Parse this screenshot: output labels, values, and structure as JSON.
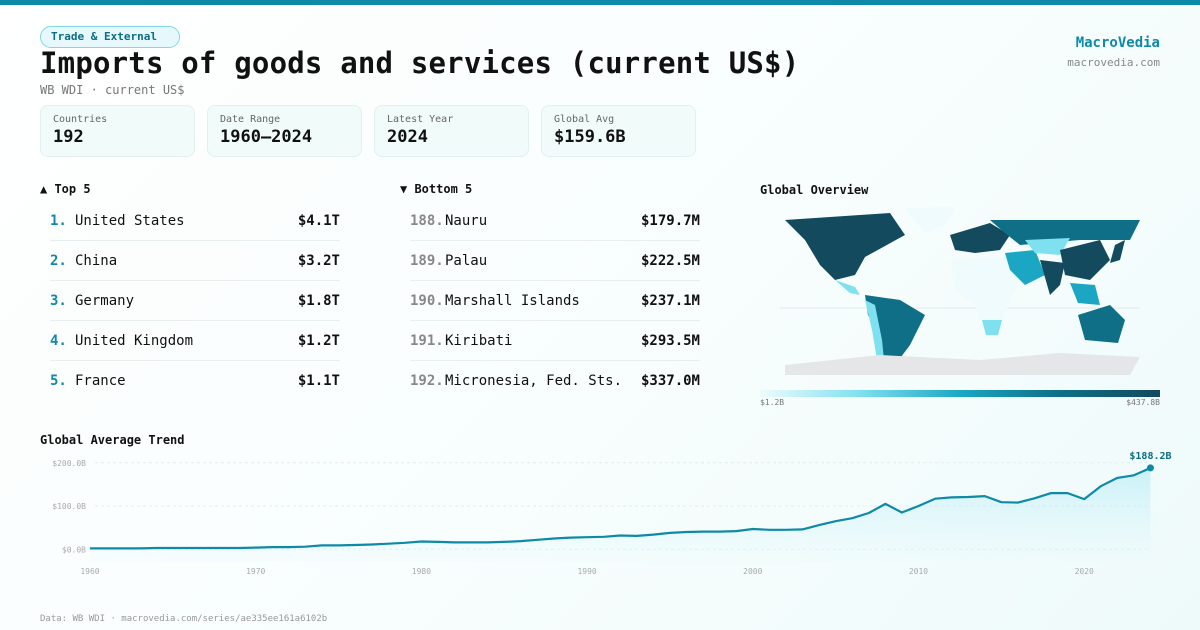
{
  "category_badge": "Trade & External",
  "title": "Imports of goods and services (current US$)",
  "subtitle": "WB WDI · current US$",
  "brand": {
    "name": "MacroVedia",
    "url": "macrovedia.com"
  },
  "stats": [
    {
      "label": "Countries",
      "value": "192"
    },
    {
      "label": "Date Range",
      "value": "1960–2024"
    },
    {
      "label": "Latest Year",
      "value": "2024"
    },
    {
      "label": "Global Avg",
      "value": "$159.6B"
    }
  ],
  "top5": {
    "heading": "▲ Top 5",
    "items": [
      {
        "rank": "1.",
        "name": "United States",
        "value": "$4.1T"
      },
      {
        "rank": "2.",
        "name": "China",
        "value": "$3.2T"
      },
      {
        "rank": "3.",
        "name": "Germany",
        "value": "$1.8T"
      },
      {
        "rank": "4.",
        "name": "United Kingdom",
        "value": "$1.2T"
      },
      {
        "rank": "5.",
        "name": "France",
        "value": "$1.1T"
      }
    ]
  },
  "bottom5": {
    "heading": "▼ Bottom 5",
    "items": [
      {
        "rank": "188.",
        "name": "Nauru",
        "value": "$179.7M"
      },
      {
        "rank": "189.",
        "name": "Palau",
        "value": "$222.5M"
      },
      {
        "rank": "190.",
        "name": "Marshall Islands",
        "value": "$237.1M"
      },
      {
        "rank": "191.",
        "name": "Kiribati",
        "value": "$293.5M"
      },
      {
        "rank": "192.",
        "name": "Micronesia, Fed. Sts.",
        "value": "$337.0M"
      }
    ]
  },
  "map": {
    "heading": "Global Overview",
    "scale_min": "$1.2B",
    "scale_max": "$437.8B",
    "colors": [
      "#effbfd",
      "#7fe0f0",
      "#1ba7c4",
      "#0e6f87",
      "#134a5e"
    ]
  },
  "footer": "Data: WB WDI · macrovedia.com/series/ae335ee161a6102b",
  "chart_data": {
    "type": "area",
    "title": "Global Average Trend",
    "xlabel": "",
    "ylabel": "",
    "x": [
      1960,
      1961,
      1962,
      1963,
      1964,
      1965,
      1966,
      1967,
      1968,
      1969,
      1970,
      1971,
      1972,
      1973,
      1974,
      1975,
      1976,
      1977,
      1978,
      1979,
      1980,
      1981,
      1982,
      1983,
      1984,
      1985,
      1986,
      1987,
      1988,
      1989,
      1990,
      1991,
      1992,
      1993,
      1994,
      1995,
      1996,
      1997,
      1998,
      1999,
      2000,
      2001,
      2002,
      2003,
      2004,
      2005,
      2006,
      2007,
      2008,
      2009,
      2010,
      2011,
      2012,
      2013,
      2014,
      2015,
      2016,
      2017,
      2018,
      2019,
      2020,
      2021,
      2022,
      2023,
      2024
    ],
    "values": [
      2,
      2,
      2,
      2,
      3,
      3,
      3,
      3,
      3,
      3,
      4,
      5,
      5,
      6,
      9,
      9,
      10,
      11,
      13,
      15,
      18,
      17,
      16,
      16,
      16,
      17,
      19,
      22,
      25,
      27,
      28,
      29,
      32,
      31,
      34,
      38,
      40,
      41,
      41,
      42,
      47,
      45,
      45,
      46,
      56,
      65,
      72,
      84,
      105,
      85,
      100,
      117,
      120,
      121,
      123,
      109,
      108,
      118,
      130,
      130,
      116,
      146,
      165,
      171,
      188.2
    ],
    "ylim": [
      0,
      200
    ],
    "yticks": [
      "$0.0B",
      "$100.0B",
      "$200.0B"
    ],
    "ytick_values": [
      0,
      100,
      200
    ],
    "xticks": [
      "1960",
      "1970",
      "1980",
      "1990",
      "2000",
      "2010",
      "2020"
    ],
    "xtick_values": [
      1960,
      1970,
      1980,
      1990,
      2000,
      2010,
      2020
    ],
    "last_label": "$188.2B",
    "grid": true,
    "color": "#0e8aa8"
  }
}
